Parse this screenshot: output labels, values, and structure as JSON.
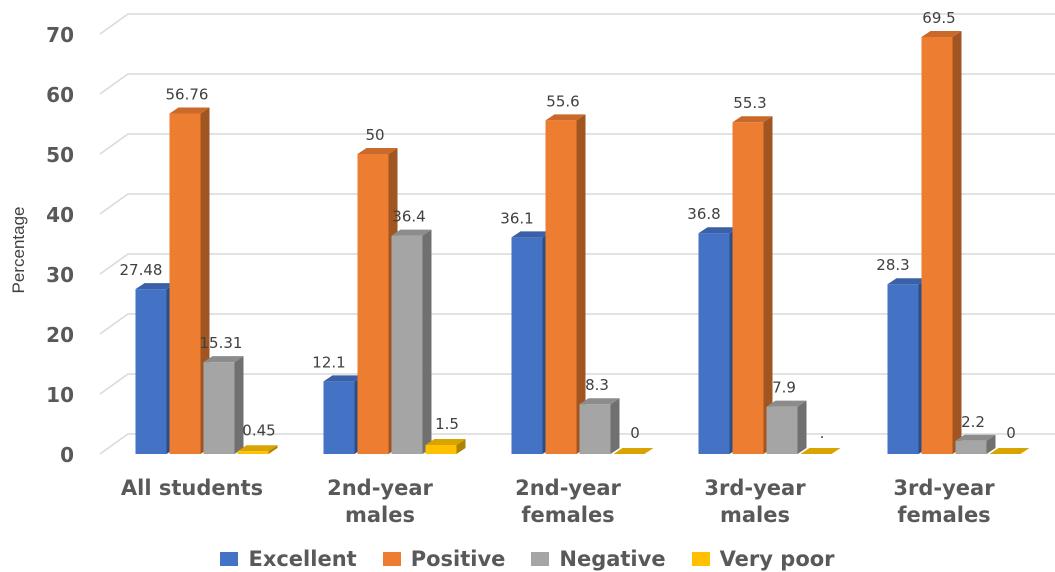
{
  "chart_data": {
    "type": "bar",
    "title": "",
    "xlabel": "",
    "ylabel": "Percentage",
    "ylim": [
      0,
      70
    ],
    "yticks": [
      0,
      10,
      20,
      30,
      40,
      50,
      60,
      70
    ],
    "grid": true,
    "legend_position": "bottom",
    "categories": [
      [
        "All students"
      ],
      [
        "2nd-year",
        "males"
      ],
      [
        "2nd-year",
        "females"
      ],
      [
        "3rd-year",
        "males"
      ],
      [
        "3rd-year",
        "females"
      ]
    ],
    "series": [
      {
        "name": "Excellent",
        "color": "#4472C4",
        "values": [
          27.48,
          12.1,
          36.1,
          36.8,
          28.3
        ],
        "labels": [
          "27.48",
          "12.1",
          "36.1",
          "36.8",
          "28.3"
        ]
      },
      {
        "name": "Positive",
        "color": "#ED7D31",
        "values": [
          56.76,
          50,
          55.6,
          55.3,
          69.5
        ],
        "labels": [
          "56.76",
          "50",
          "55.6",
          "55.3",
          "69.5"
        ]
      },
      {
        "name": "Negative",
        "color": "#A5A5A5",
        "values": [
          15.31,
          36.4,
          8.3,
          7.9,
          2.2
        ],
        "labels": [
          "15.31",
          "36.4",
          "8.3",
          "7.9",
          "2.2"
        ]
      },
      {
        "name": "Very poor",
        "color": "#FFC000",
        "values": [
          0.45,
          1.5,
          0,
          0,
          0
        ],
        "labels": [
          "0.45",
          "1.5",
          "0",
          ".",
          "0"
        ]
      }
    ]
  }
}
